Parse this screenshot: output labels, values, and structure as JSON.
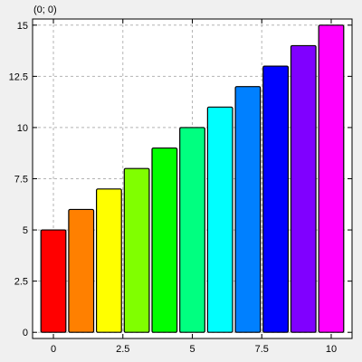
{
  "coordinate_readout": "(0; 0)",
  "chart_data": {
    "type": "bar",
    "title": "",
    "xlabel": "",
    "ylabel": "",
    "x": [
      0,
      1,
      2,
      3,
      4,
      5,
      6,
      7,
      8,
      9,
      10
    ],
    "values": [
      5,
      6,
      7,
      8,
      9,
      10,
      11,
      12,
      13,
      14,
      15
    ],
    "colors": [
      "#ff0000",
      "#ff8000",
      "#ffff00",
      "#80ff00",
      "#00ff00",
      "#00ff80",
      "#00ffff",
      "#0080ff",
      "#0000ff",
      "#8000ff",
      "#ff00ff"
    ],
    "xlim": [
      -0.75,
      10.75
    ],
    "ylim": [
      -0.3,
      15.3
    ],
    "xticks": [
      0,
      2.5,
      5,
      7.5,
      10
    ],
    "xtick_labels": [
      "0",
      "2.5",
      "5",
      "7.5",
      "10"
    ],
    "yticks": [
      0,
      2.5,
      5,
      7.5,
      10,
      12.5,
      15
    ],
    "ytick_labels": [
      "0",
      "2.5",
      "5",
      "7.5",
      "10",
      "12.5",
      "15"
    ],
    "grid": true,
    "legend": "none"
  }
}
